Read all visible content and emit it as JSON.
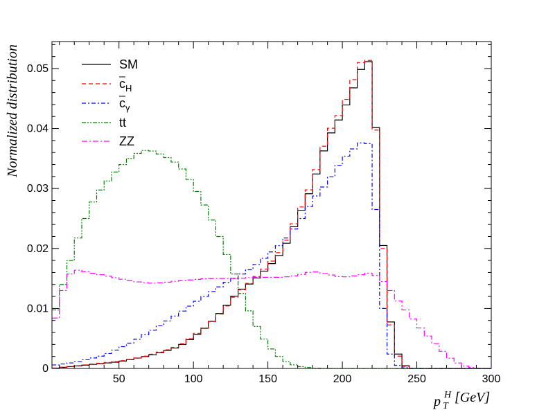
{
  "chart_data": {
    "type": "step-line",
    "xlabel": {
      "base": "p",
      "sup": "H",
      "sub": "T",
      "unit": "[GeV]"
    },
    "ylabel": "Normalized distribution",
    "xlim": [
      5,
      300
    ],
    "ylim": [
      0,
      0.0545
    ],
    "x_ticks": [
      50,
      100,
      150,
      200,
      250,
      300
    ],
    "y_ticks": [
      0,
      0.01,
      0.02,
      0.03,
      0.04,
      0.05
    ],
    "y_tick_labels": [
      "0",
      "0.01",
      "0.02",
      "0.03",
      "0.04",
      "0.05"
    ],
    "grid": false,
    "legend_position": "top-left",
    "bin_width": 5,
    "series": [
      {
        "name": "SM",
        "color": "#000000",
        "dash": "",
        "points": [
          [
            5,
            0.0
          ],
          [
            50,
            0.0011
          ],
          [
            60,
            0.0016
          ],
          [
            70,
            0.0021
          ],
          [
            80,
            0.0028
          ],
          [
            90,
            0.0036
          ],
          [
            100,
            0.0052
          ],
          [
            110,
            0.0072
          ],
          [
            120,
            0.0098
          ],
          [
            130,
            0.0128
          ],
          [
            140,
            0.0145
          ],
          [
            150,
            0.0168
          ],
          [
            160,
            0.0195
          ],
          [
            170,
            0.025
          ],
          [
            180,
            0.0305
          ],
          [
            190,
            0.0382
          ],
          [
            200,
            0.0425
          ],
          [
            210,
            0.0482
          ],
          [
            215,
            0.0515
          ],
          [
            220,
            0.0508
          ],
          [
            225,
            0.0295
          ],
          [
            230,
            0.0115
          ],
          [
            235,
            0.004
          ],
          [
            240,
            0.0008
          ],
          [
            245,
            0.0001
          ],
          [
            250,
            0.0
          ]
        ]
      },
      {
        "name": "c_H",
        "color": "#ff0000",
        "dash": "6,4",
        "points": [
          [
            5,
            0.0
          ],
          [
            50,
            0.0012
          ],
          [
            60,
            0.0016
          ],
          [
            70,
            0.0022
          ],
          [
            80,
            0.0029
          ],
          [
            90,
            0.0037
          ],
          [
            100,
            0.0054
          ],
          [
            110,
            0.0072
          ],
          [
            120,
            0.0097
          ],
          [
            130,
            0.0126
          ],
          [
            140,
            0.0147
          ],
          [
            150,
            0.0172
          ],
          [
            160,
            0.02
          ],
          [
            170,
            0.0255
          ],
          [
            180,
            0.0312
          ],
          [
            190,
            0.039
          ],
          [
            200,
            0.0432
          ],
          [
            210,
            0.0498
          ],
          [
            215,
            0.0522
          ],
          [
            220,
            0.0505
          ],
          [
            225,
            0.029
          ],
          [
            230,
            0.011
          ],
          [
            235,
            0.0035
          ],
          [
            240,
            0.0006
          ],
          [
            245,
            0.0001
          ],
          [
            250,
            0.0
          ]
        ]
      },
      {
        "name": "c_γ",
        "color": "#0000ff",
        "dash": "6,3,2,3",
        "points": [
          [
            5,
            0.0005
          ],
          [
            20,
            0.001
          ],
          [
            40,
            0.0022
          ],
          [
            60,
            0.0045
          ],
          [
            80,
            0.0075
          ],
          [
            100,
            0.0108
          ],
          [
            120,
            0.014
          ],
          [
            140,
            0.0168
          ],
          [
            160,
            0.021
          ],
          [
            170,
            0.024
          ],
          [
            180,
            0.028
          ],
          [
            190,
            0.031
          ],
          [
            200,
            0.0348
          ],
          [
            210,
            0.0372
          ],
          [
            215,
            0.038
          ],
          [
            220,
            0.037
          ],
          [
            225,
            0.016
          ],
          [
            230,
            0.004
          ],
          [
            235,
            0.0008
          ],
          [
            240,
            0.0002
          ],
          [
            245,
            0.0
          ]
        ]
      },
      {
        "name": "tt",
        "color": "#008000",
        "dash": "6,2,2,2,2,2",
        "points": [
          [
            5,
            0.0075
          ],
          [
            10,
            0.012
          ],
          [
            15,
            0.016
          ],
          [
            20,
            0.02
          ],
          [
            25,
            0.0235
          ],
          [
            30,
            0.0265
          ],
          [
            35,
            0.029
          ],
          [
            40,
            0.0305
          ],
          [
            45,
            0.032
          ],
          [
            50,
            0.0335
          ],
          [
            55,
            0.0345
          ],
          [
            60,
            0.0355
          ],
          [
            65,
            0.0362
          ],
          [
            70,
            0.0365
          ],
          [
            75,
            0.036
          ],
          [
            80,
            0.0355
          ],
          [
            85,
            0.0348
          ],
          [
            90,
            0.034
          ],
          [
            95,
            0.0325
          ],
          [
            100,
            0.0305
          ],
          [
            105,
            0.0285
          ],
          [
            110,
            0.026
          ],
          [
            115,
            0.0235
          ],
          [
            120,
            0.0205
          ],
          [
            125,
            0.0175
          ],
          [
            130,
            0.014
          ],
          [
            135,
            0.011
          ],
          [
            140,
            0.0082
          ],
          [
            145,
            0.0058
          ],
          [
            150,
            0.004
          ],
          [
            155,
            0.0025
          ],
          [
            160,
            0.0015
          ],
          [
            165,
            0.0008
          ],
          [
            170,
            0.0004
          ],
          [
            175,
            0.0002
          ],
          [
            180,
            0.0001
          ],
          [
            185,
            0.0
          ]
        ]
      },
      {
        "name": "ZZ",
        "color": "#ff00ff",
        "dash": "8,3,2,3",
        "points": [
          [
            5,
            0.0058
          ],
          [
            10,
            0.011
          ],
          [
            15,
            0.015
          ],
          [
            20,
            0.0165
          ],
          [
            30,
            0.016
          ],
          [
            40,
            0.0155
          ],
          [
            50,
            0.015
          ],
          [
            60,
            0.0145
          ],
          [
            70,
            0.0142
          ],
          [
            80,
            0.0143
          ],
          [
            90,
            0.0146
          ],
          [
            100,
            0.0148
          ],
          [
            110,
            0.015
          ],
          [
            120,
            0.015
          ],
          [
            130,
            0.015
          ],
          [
            140,
            0.0152
          ],
          [
            150,
            0.0152
          ],
          [
            160,
            0.0152
          ],
          [
            170,
            0.0155
          ],
          [
            180,
            0.0162
          ],
          [
            190,
            0.0157
          ],
          [
            200,
            0.0152
          ],
          [
            210,
            0.0155
          ],
          [
            220,
            0.016
          ],
          [
            230,
            0.014
          ],
          [
            235,
            0.012
          ],
          [
            240,
            0.0105
          ],
          [
            245,
            0.009
          ],
          [
            250,
            0.0075
          ],
          [
            255,
            0.006
          ],
          [
            260,
            0.0048
          ],
          [
            265,
            0.0035
          ],
          [
            270,
            0.0022
          ],
          [
            275,
            0.0012
          ],
          [
            280,
            0.0006
          ],
          [
            285,
            0.0002
          ],
          [
            290,
            0.0001
          ],
          [
            295,
            0.0
          ]
        ]
      }
    ]
  }
}
